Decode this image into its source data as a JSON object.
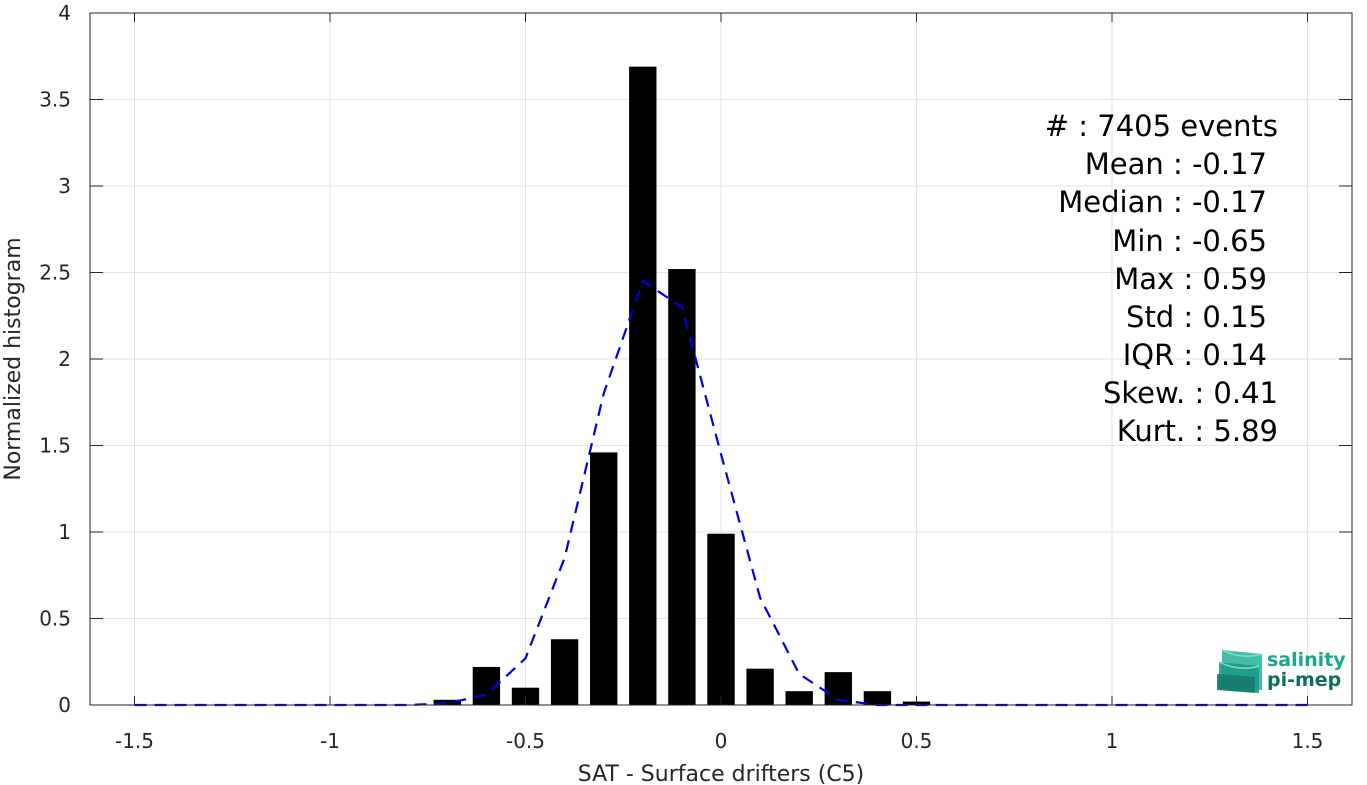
{
  "chart_data": {
    "type": "bar",
    "xlabel": "SAT - Surface drifters (C5)",
    "ylabel": "Normalized histogram",
    "xlim": [
      -1.5,
      1.5
    ],
    "ylim": [
      0,
      4
    ],
    "x_ticks": [
      -1.5,
      -1,
      -0.5,
      0,
      0.5,
      1,
      1.5
    ],
    "x_tick_labels": [
      "-1.5",
      "-1",
      "-0.5",
      "0",
      "0.5",
      "1",
      "1.5"
    ],
    "y_ticks": [
      0,
      0.5,
      1,
      1.5,
      2,
      2.5,
      3,
      3.5,
      4
    ],
    "y_tick_labels": [
      "0",
      "0.5",
      "1",
      "1.5",
      "2",
      "2.5",
      "3",
      "3.5",
      "4"
    ],
    "grid": true,
    "bar_width": 0.07,
    "histogram": {
      "x": [
        -0.7,
        -0.6,
        -0.5,
        -0.4,
        -0.3,
        -0.2,
        -0.1,
        0.0,
        0.1,
        0.2,
        0.3,
        0.4,
        0.5
      ],
      "values": [
        0.03,
        0.22,
        0.1,
        0.38,
        1.46,
        3.69,
        2.52,
        0.99,
        0.21,
        0.08,
        0.19,
        0.08,
        0.02
      ],
      "color": "#000000"
    },
    "fit_curve": {
      "style": "dashed",
      "color": "#0000dd",
      "x": [
        -1.5,
        -1.4,
        -1.3,
        -1.2,
        -1.1,
        -1.0,
        -0.9,
        -0.8,
        -0.7,
        -0.6,
        -0.5,
        -0.4,
        -0.3,
        -0.2,
        -0.1,
        0.0,
        0.1,
        0.2,
        0.3,
        0.4,
        0.5,
        0.6,
        0.7,
        0.8,
        0.9,
        1.0,
        1.1,
        1.2,
        1.3,
        1.4,
        1.5
      ],
      "y": [
        0,
        0,
        0,
        0,
        0,
        0,
        0,
        0,
        0.01,
        0.06,
        0.27,
        0.85,
        1.8,
        2.45,
        2.3,
        1.45,
        0.62,
        0.18,
        0.03,
        0.0,
        0,
        0,
        0,
        0,
        0,
        0,
        0,
        0,
        0,
        0,
        0
      ]
    }
  },
  "stats": {
    "count": "#  : 7405 events",
    "mean": "Mean : -0.17",
    "median": "Median : -0.17",
    "min": "Min : -0.65",
    "max": "Max : 0.59",
    "std": "Std : 0.15",
    "iqr": "IQR : 0.14",
    "skew": "Skew. : 0.41",
    "kurt": "Kurt. : 5.89"
  },
  "logo": {
    "line1": "salinity",
    "line2": "pi-mep",
    "color_top": "#1aa58f",
    "color_bottom": "#0f6e61"
  }
}
